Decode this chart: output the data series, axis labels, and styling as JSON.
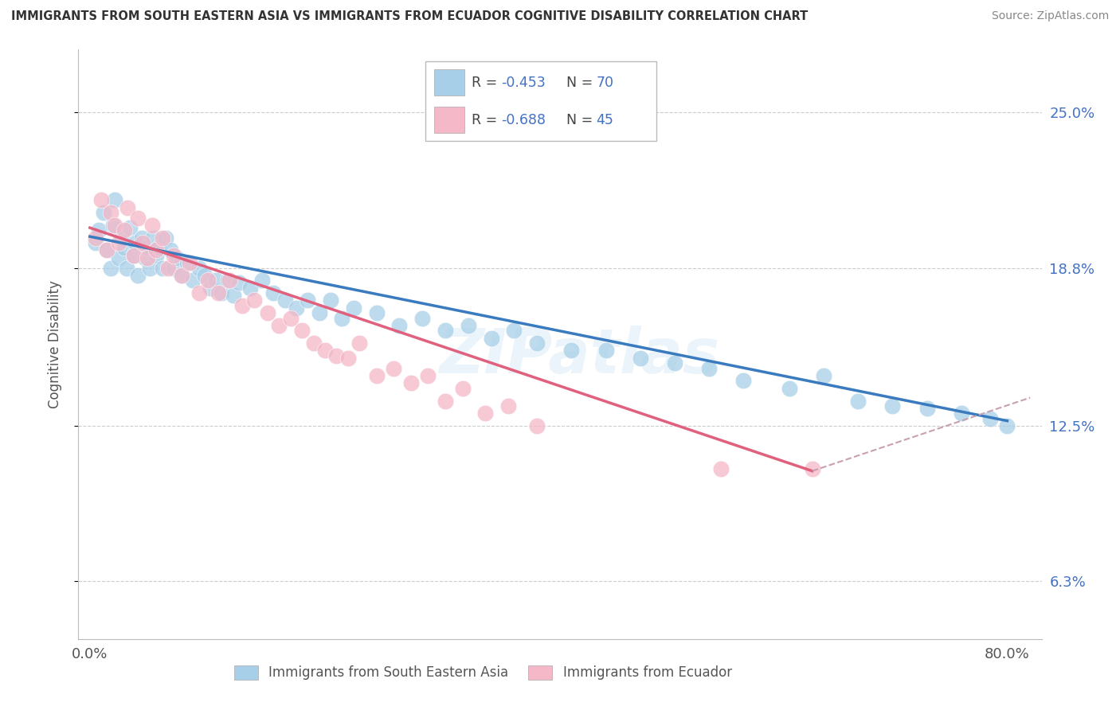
{
  "title": "IMMIGRANTS FROM SOUTH EASTERN ASIA VS IMMIGRANTS FROM ECUADOR COGNITIVE DISABILITY CORRELATION CHART",
  "source": "Source: ZipAtlas.com",
  "ylabel": "Cognitive Disability",
  "y_ticks": [
    0.063,
    0.125,
    0.188,
    0.25
  ],
  "y_tick_labels_right": [
    "6.3%",
    "12.5%",
    "18.8%",
    "25.0%"
  ],
  "xlim": [
    -0.01,
    0.83
  ],
  "ylim": [
    0.04,
    0.275
  ],
  "R_blue": -0.453,
  "N_blue": 70,
  "R_pink": -0.688,
  "N_pink": 45,
  "blue_color": "#a8cfe8",
  "pink_color": "#f4b8c8",
  "blue_line_color": "#3a7abf",
  "pink_line_color": "#e0607e",
  "pink_dash_color": "#c8a0b0",
  "legend_labels": [
    "Immigrants from South Eastern Asia",
    "Immigrants from Ecuador"
  ],
  "watermark": "ZIPatlas",
  "blue_scatter_x": [
    0.005,
    0.008,
    0.012,
    0.015,
    0.018,
    0.02,
    0.022,
    0.025,
    0.028,
    0.03,
    0.032,
    0.035,
    0.038,
    0.04,
    0.042,
    0.045,
    0.048,
    0.05,
    0.052,
    0.055,
    0.058,
    0.06,
    0.063,
    0.066,
    0.07,
    0.073,
    0.076,
    0.08,
    0.085,
    0.09,
    0.095,
    0.1,
    0.105,
    0.11,
    0.115,
    0.12,
    0.125,
    0.13,
    0.14,
    0.15,
    0.16,
    0.17,
    0.18,
    0.19,
    0.2,
    0.21,
    0.22,
    0.23,
    0.25,
    0.27,
    0.29,
    0.31,
    0.33,
    0.35,
    0.37,
    0.39,
    0.42,
    0.45,
    0.48,
    0.51,
    0.54,
    0.57,
    0.61,
    0.64,
    0.67,
    0.7,
    0.73,
    0.76,
    0.785,
    0.8
  ],
  "blue_scatter_y": [
    0.198,
    0.203,
    0.21,
    0.195,
    0.188,
    0.205,
    0.215,
    0.192,
    0.2,
    0.196,
    0.188,
    0.204,
    0.193,
    0.198,
    0.185,
    0.2,
    0.192,
    0.196,
    0.188,
    0.2,
    0.193,
    0.196,
    0.188,
    0.2,
    0.195,
    0.188,
    0.192,
    0.185,
    0.19,
    0.183,
    0.188,
    0.185,
    0.18,
    0.183,
    0.178,
    0.183,
    0.177,
    0.182,
    0.18,
    0.183,
    0.178,
    0.175,
    0.172,
    0.175,
    0.17,
    0.175,
    0.168,
    0.172,
    0.17,
    0.165,
    0.168,
    0.163,
    0.165,
    0.16,
    0.163,
    0.158,
    0.155,
    0.155,
    0.152,
    0.15,
    0.148,
    0.143,
    0.14,
    0.145,
    0.135,
    0.133,
    0.132,
    0.13,
    0.128,
    0.125
  ],
  "pink_scatter_x": [
    0.005,
    0.01,
    0.015,
    0.018,
    0.022,
    0.025,
    0.03,
    0.033,
    0.038,
    0.042,
    0.046,
    0.05,
    0.054,
    0.058,
    0.063,
    0.068,
    0.073,
    0.08,
    0.087,
    0.095,
    0.103,
    0.112,
    0.122,
    0.133,
    0.143,
    0.155,
    0.165,
    0.175,
    0.185,
    0.195,
    0.205,
    0.215,
    0.225,
    0.235,
    0.25,
    0.265,
    0.28,
    0.295,
    0.31,
    0.325,
    0.345,
    0.365,
    0.39,
    0.55,
    0.63
  ],
  "pink_scatter_y": [
    0.2,
    0.215,
    0.195,
    0.21,
    0.205,
    0.198,
    0.203,
    0.212,
    0.193,
    0.208,
    0.198,
    0.192,
    0.205,
    0.195,
    0.2,
    0.188,
    0.193,
    0.185,
    0.19,
    0.178,
    0.183,
    0.178,
    0.183,
    0.173,
    0.175,
    0.17,
    0.165,
    0.168,
    0.163,
    0.158,
    0.155,
    0.153,
    0.152,
    0.158,
    0.145,
    0.148,
    0.142,
    0.145,
    0.135,
    0.14,
    0.13,
    0.133,
    0.125,
    0.108,
    0.108
  ]
}
